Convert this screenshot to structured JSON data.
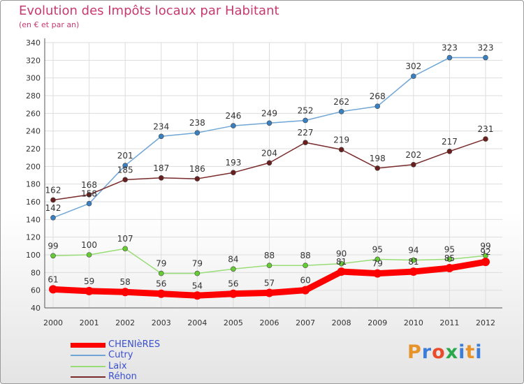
{
  "chart_data": {
    "type": "line",
    "title": "Evolution des Impôts locaux par Habitant",
    "subtitle": "(en € et par an)",
    "x": [
      "2000",
      "2001",
      "2002",
      "2003",
      "2004",
      "2005",
      "2006",
      "2007",
      "2008",
      "2009",
      "2010",
      "2011",
      "2012"
    ],
    "ylim": [
      40,
      340
    ],
    "yticks": [
      40,
      60,
      80,
      100,
      120,
      140,
      160,
      180,
      200,
      220,
      240,
      260,
      280,
      300,
      320,
      340
    ],
    "grid": true,
    "legend_position": "bottom-left",
    "series": [
      {
        "name": "CHENIèRES",
        "color": "#ff0000",
        "width": 9,
        "values": [
          61,
          59,
          58,
          56,
          54,
          56,
          57,
          60,
          81,
          79,
          81,
          85,
          92
        ]
      },
      {
        "name": "Cutry",
        "color": "#6fa6d6",
        "marker": "#3a7fc0",
        "width": 1.5,
        "values": [
          142,
          158,
          201,
          234,
          238,
          246,
          249,
          252,
          262,
          268,
          302,
          323,
          323
        ]
      },
      {
        "name": "Laix",
        "color": "#99dd77",
        "marker": "#66cc33",
        "width": 1.5,
        "values": [
          99,
          100,
          107,
          79,
          79,
          84,
          88,
          88,
          90,
          95,
          94,
          95,
          99
        ]
      },
      {
        "name": "Réhon",
        "color": "#7a2a2a",
        "marker": "#6a1f1f",
        "width": 1.5,
        "values": [
          162,
          168,
          185,
          187,
          186,
          193,
          204,
          227,
          219,
          198,
          202,
          217,
          231
        ]
      }
    ]
  },
  "logo": {
    "text": "Proxiti",
    "colors": [
      "#e8922a",
      "#3b7dd8",
      "#e84c2a",
      "#2aa84c",
      "#3b7dd8",
      "#e8922a",
      "#3b7dd8"
    ]
  }
}
